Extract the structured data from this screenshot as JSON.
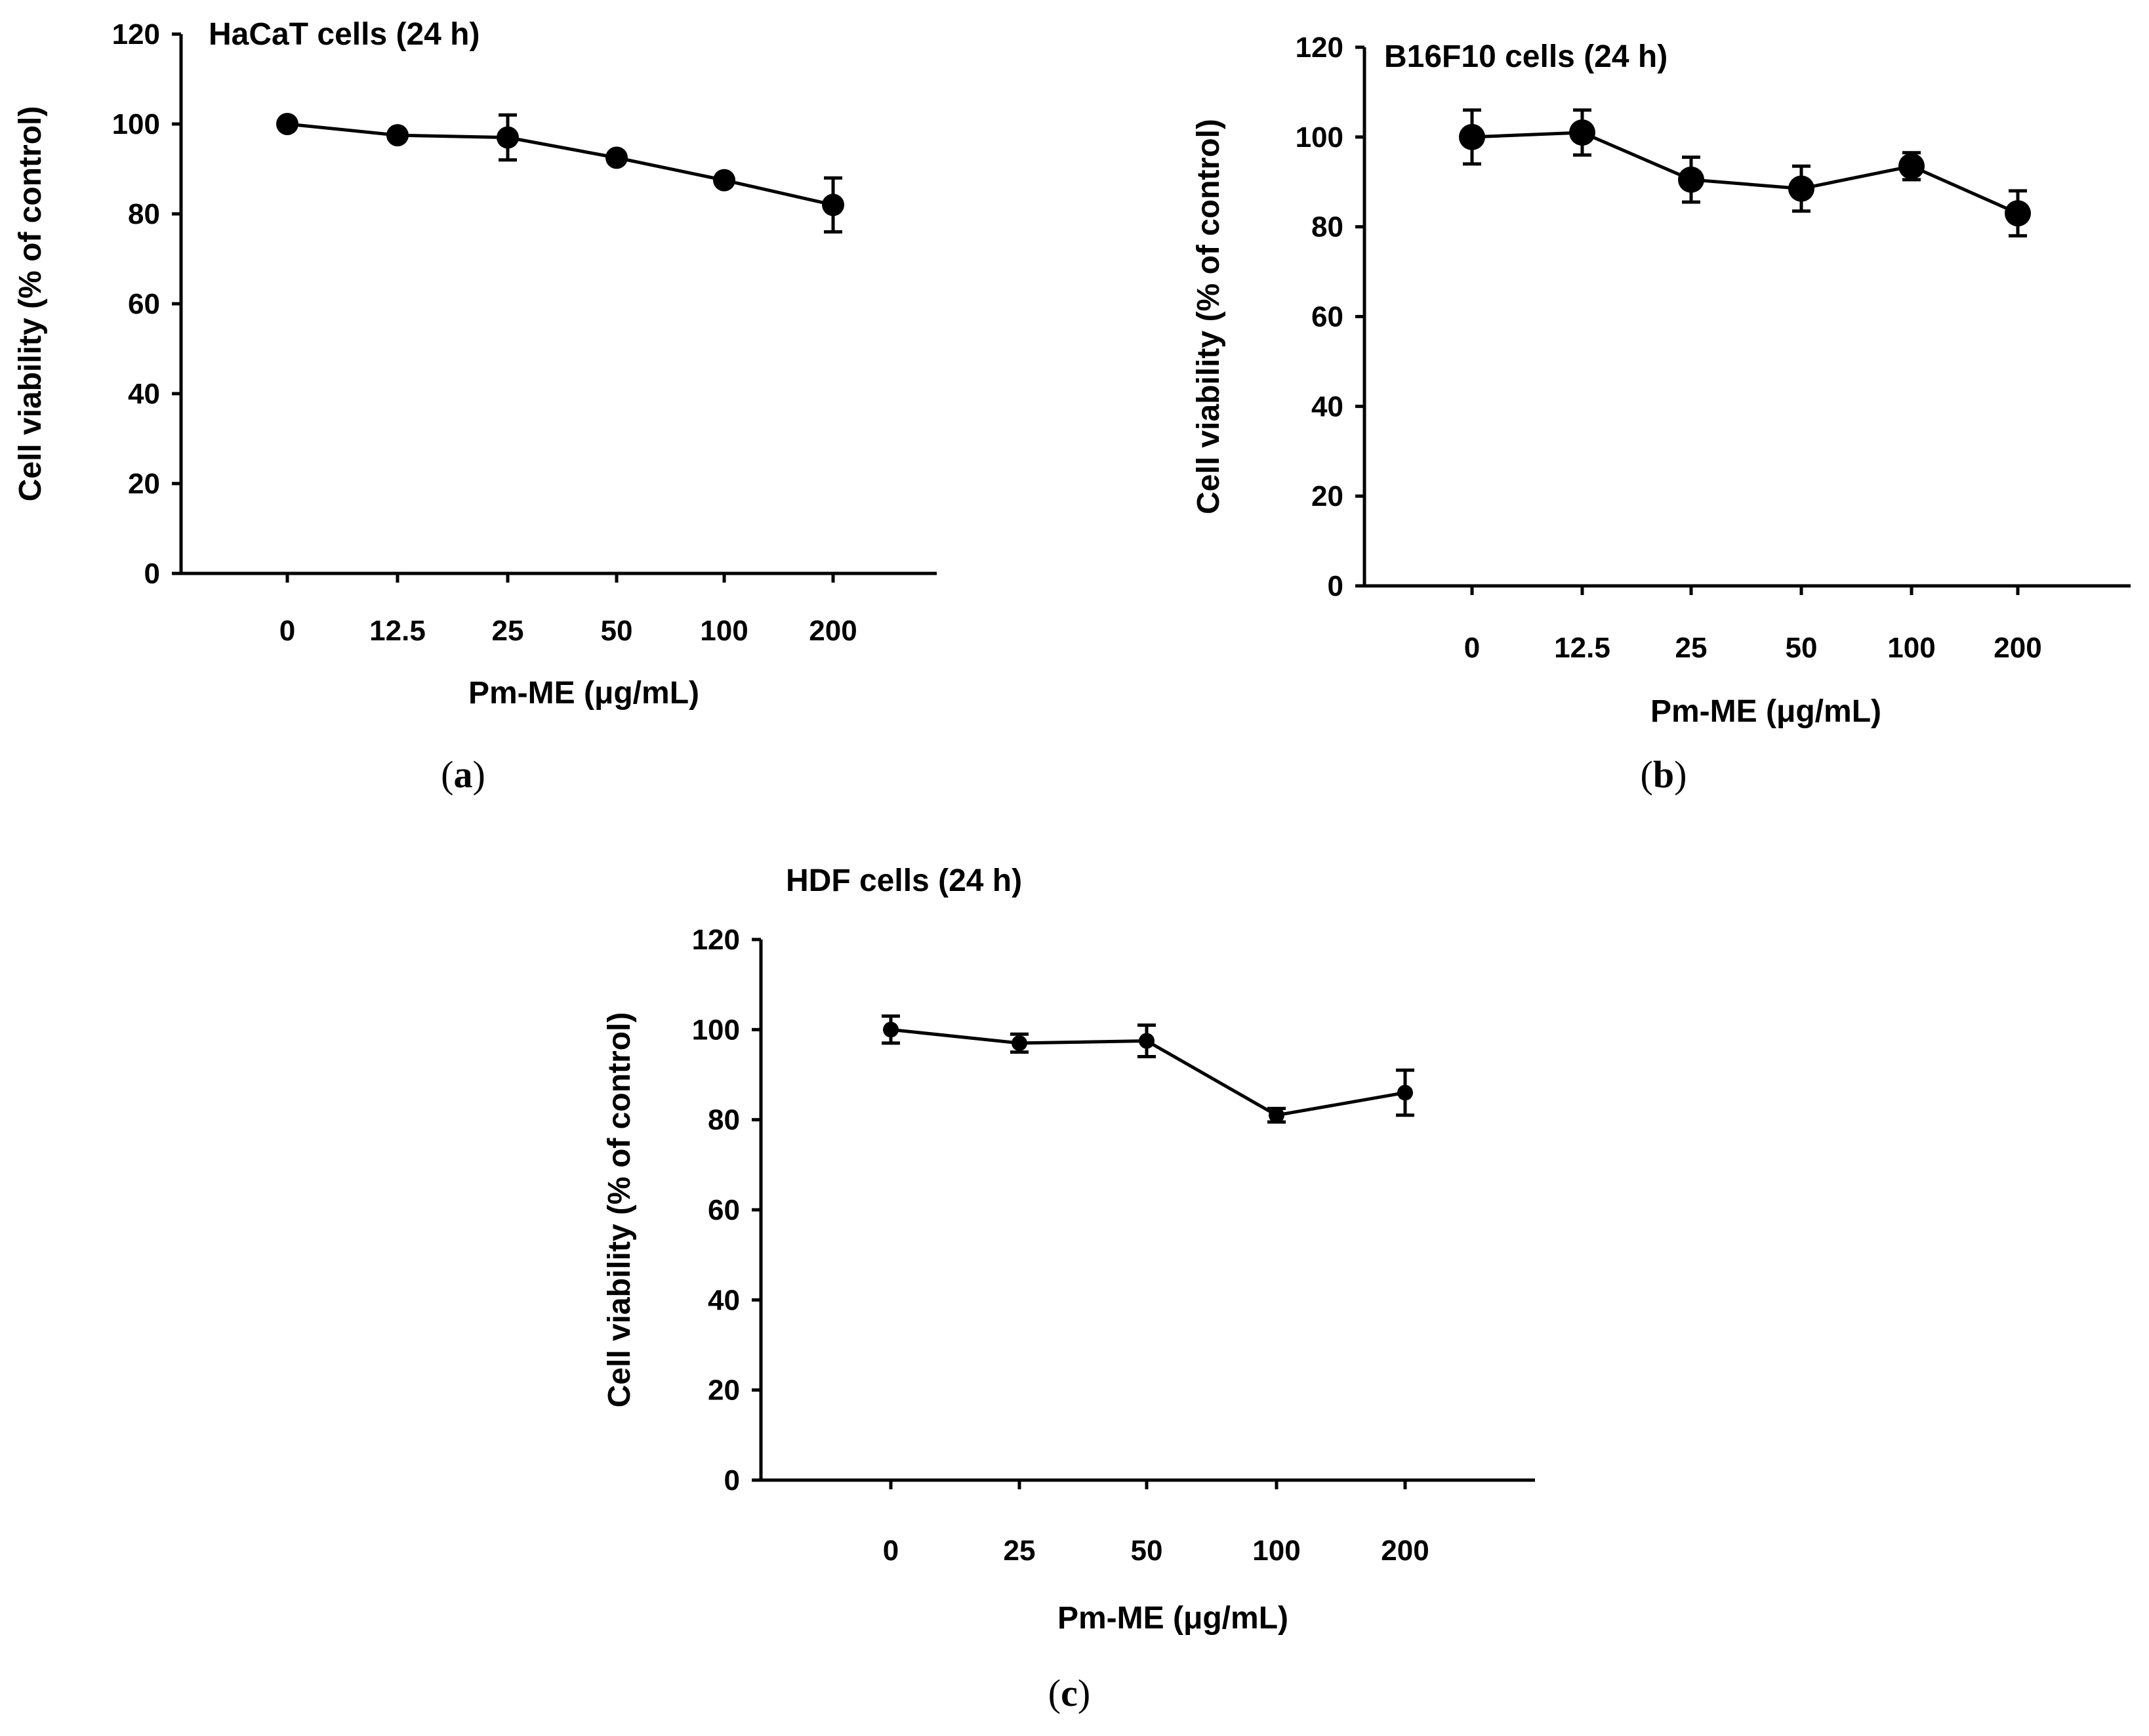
{
  "chart_data": [
    {
      "type": "line",
      "panel": "a",
      "title": "HaCaT cells (24 h)",
      "xlabel": "Pm-ME (μg/mL)",
      "ylabel": "Cell viability (% of control)",
      "categories": [
        "0",
        "12.5",
        "25",
        "50",
        "100",
        "200"
      ],
      "series": [
        {
          "name": "HaCaT",
          "values": [
            100,
            97.5,
            97,
            92.5,
            87.5,
            82
          ],
          "errors": [
            1,
            1,
            5,
            1,
            1,
            6
          ]
        }
      ],
      "ylim": [
        0,
        120
      ],
      "yticks": [
        0,
        20,
        40,
        60,
        80,
        100,
        120
      ]
    },
    {
      "type": "line",
      "panel": "b",
      "title": "B16F10 cells (24 h)",
      "xlabel": "Pm-ME (μg/mL)",
      "ylabel": "Cell viability (% of control)",
      "categories": [
        "0",
        "12.5",
        "25",
        "50",
        "100",
        "200"
      ],
      "series": [
        {
          "name": "B16F10",
          "values": [
            100,
            101,
            90.5,
            88.5,
            93.5,
            83
          ],
          "errors": [
            6,
            5,
            5,
            5,
            3,
            5
          ]
        }
      ],
      "ylim": [
        0,
        120
      ],
      "yticks": [
        0,
        20,
        40,
        60,
        80,
        100,
        120
      ]
    },
    {
      "type": "line",
      "panel": "c",
      "title": "HDF cells (24 h)",
      "xlabel": "Pm-ME (μg/mL)",
      "ylabel": "Cell viability (% of control)",
      "categories": [
        "0",
        "25",
        "50",
        "100",
        "200"
      ],
      "series": [
        {
          "name": "HDF",
          "values": [
            100,
            97,
            97.5,
            81,
            86
          ],
          "errors": [
            3,
            2,
            3.5,
            1.5,
            5
          ]
        }
      ],
      "ylim": [
        0,
        120
      ],
      "yticks": [
        0,
        20,
        40,
        60,
        80,
        100,
        120
      ]
    }
  ],
  "panel_labels": {
    "a": {
      "open": "(",
      "letter": "a",
      "close": ")"
    },
    "b": {
      "open": "(",
      "letter": "b",
      "close": ")"
    },
    "c": {
      "open": "(",
      "letter": "c",
      "close": ")"
    }
  }
}
